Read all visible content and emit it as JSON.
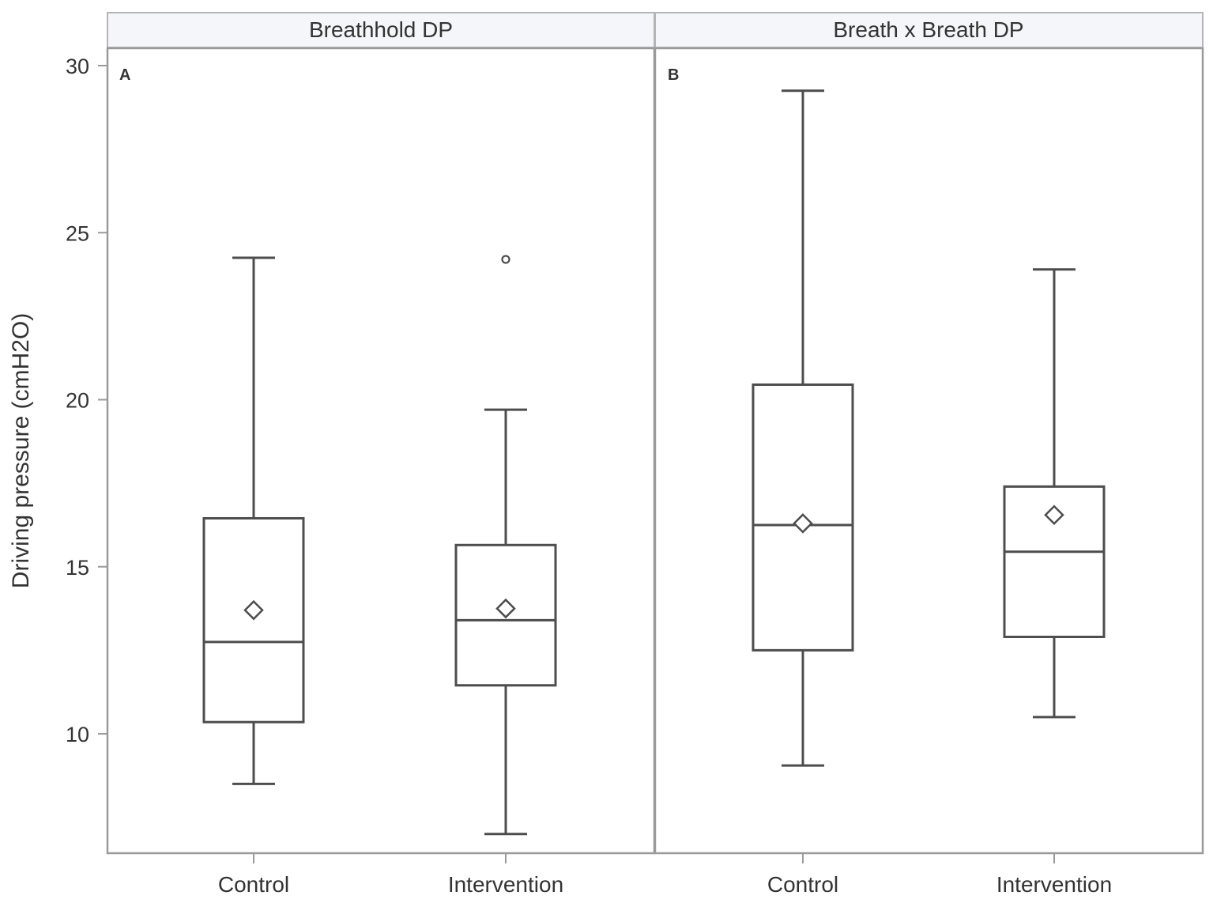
{
  "chart_data": {
    "type": "boxplot",
    "title": "",
    "ylabel": "Driving pressure (cmH2O)",
    "xlabel": "",
    "ylim": [
      6.5,
      30.5
    ],
    "yticks": [
      10,
      15,
      20,
      25,
      30
    ],
    "grid": false,
    "legend": null,
    "categories": [
      "Control",
      "Intervention"
    ],
    "panels": [
      {
        "strip_label": "Breathhold DP",
        "panel_letter": "A",
        "boxes": [
          {
            "category": "Control",
            "whisker_low": 8.5,
            "q1": 10.35,
            "median": 12.75,
            "q3": 16.45,
            "whisker_high": 24.25,
            "mean": 13.7,
            "outliers": []
          },
          {
            "category": "Intervention",
            "whisker_low": 7.0,
            "q1": 11.45,
            "median": 13.4,
            "q3": 15.65,
            "whisker_high": 19.7,
            "mean": 13.75,
            "outliers": [
              24.2
            ]
          }
        ]
      },
      {
        "strip_label": "Breath x Breath DP",
        "panel_letter": "B",
        "boxes": [
          {
            "category": "Control",
            "whisker_low": 9.05,
            "q1": 12.5,
            "median": 16.25,
            "q3": 20.45,
            "whisker_high": 29.25,
            "mean": 16.3,
            "outliers": []
          },
          {
            "category": "Intervention",
            "whisker_low": 10.5,
            "q1": 12.9,
            "median": 15.45,
            "q3": 17.4,
            "whisker_high": 23.9,
            "mean": 16.55,
            "outliers": []
          }
        ]
      }
    ]
  },
  "colors": {
    "line": "#4d4d4d",
    "frame": "#9a9a9a",
    "strip_fill": "#f4f6fa",
    "text": "#333333"
  }
}
